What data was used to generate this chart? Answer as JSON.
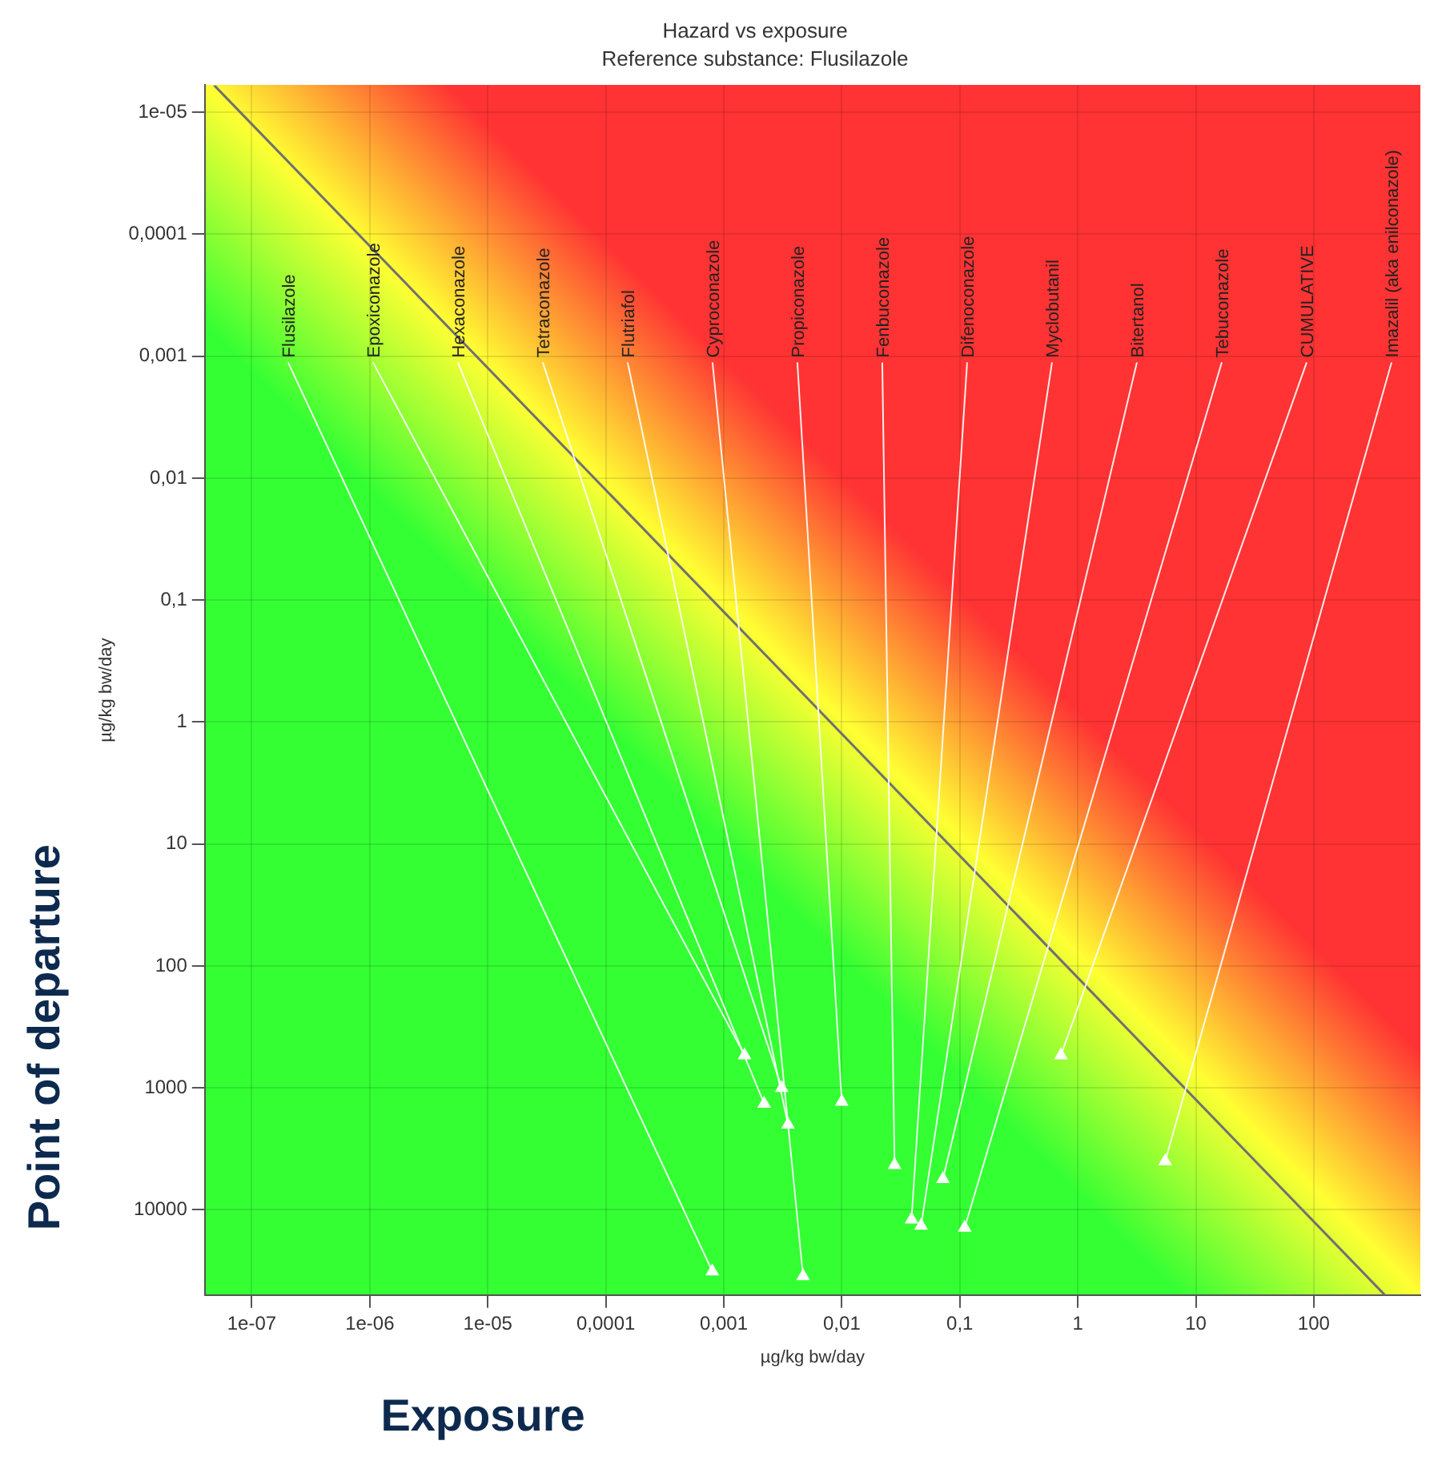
{
  "chart_data": {
    "type": "scatter",
    "title": "Hazard vs exposure",
    "subtitle": "Reference substance: Flusilazole",
    "xlabel": "µg/kg bw/day",
    "ylabel": "µg/kg bw/day",
    "log": "xy",
    "grid": true,
    "xlim": [
      4e-08,
      800
    ],
    "ylim": [
      50000,
      6e-06
    ],
    "xticks": [
      {
        "value": 1e-07,
        "label": "1e-07"
      },
      {
        "value": 1e-06,
        "label": "1e-06"
      },
      {
        "value": 1e-05,
        "label": "1e-05"
      },
      {
        "value": 0.0001,
        "label": "0,0001"
      },
      {
        "value": 0.001,
        "label": "0,001"
      },
      {
        "value": 0.01,
        "label": "0,01"
      },
      {
        "value": 0.1,
        "label": "0,1"
      },
      1,
      10,
      100
    ],
    "yticks": [
      {
        "value": 1e-05,
        "label": "1e-05"
      },
      {
        "value": 0.0001,
        "label": "0,0001"
      },
      {
        "value": 0.001,
        "label": "0,001"
      },
      {
        "value": 0.01,
        "label": "0,01"
      },
      {
        "value": 0.1,
        "label": "0,1"
      },
      1,
      10,
      100,
      1000,
      10000
    ],
    "series": [
      {
        "color": "#ffffff",
        "marker": "triangle",
        "x": [
          0.0008,
          0.0015,
          0.0022,
          0.0031,
          0.0035,
          0.0047,
          0.01,
          0.028,
          0.039,
          0.047,
          0.072,
          0.11,
          0.72,
          5.5
        ],
        "values": [
          32000,
          540,
          1350,
          1000,
          2000,
          35000,
          1300,
          4300,
          12000,
          13500,
          5600,
          14000,
          540,
          4000
        ]
      },
      {
        "type": "line",
        "color": "#707070",
        "marker": "none",
        "x": [
          4.8e-08,
          400
        ],
        "values": [
          6e-06,
          50000
        ]
      }
    ],
    "annotations": [
      {
        "text": "Flusilazole",
        "x": 0.0008,
        "y": 32000
      },
      {
        "text": "Epoxiconazole",
        "x": 0.0015,
        "y": 540
      },
      {
        "text": "Hexaconazole",
        "x": 0.0022,
        "y": 1350
      },
      {
        "text": "Tetraconazole",
        "x": 0.0031,
        "y": 1000
      },
      {
        "text": "Flutriafol",
        "x": 0.0035,
        "y": 2000
      },
      {
        "text": "Cyproconazole",
        "x": 0.0047,
        "y": 35000
      },
      {
        "text": "Propiconazole",
        "x": 0.01,
        "y": 1300
      },
      {
        "text": "Fenbuconazole",
        "x": 0.028,
        "y": 4300
      },
      {
        "text": "Difenoconazole",
        "x": 0.039,
        "y": 12000
      },
      {
        "text": "Myclobutanil",
        "x": 0.047,
        "y": 13500
      },
      {
        "text": "Bitertanol",
        "x": 0.072,
        "y": 5600
      },
      {
        "text": "Tebuconazole",
        "x": 0.11,
        "y": 14000
      },
      {
        "text": "CUMULATIVE",
        "x": 0.72,
        "y": 540
      },
      {
        "text": "Imazalil (aka enilconazole)",
        "x": 5.5,
        "y": 4000
      },
      "Exposure",
      "Point of departure"
    ]
  }
}
